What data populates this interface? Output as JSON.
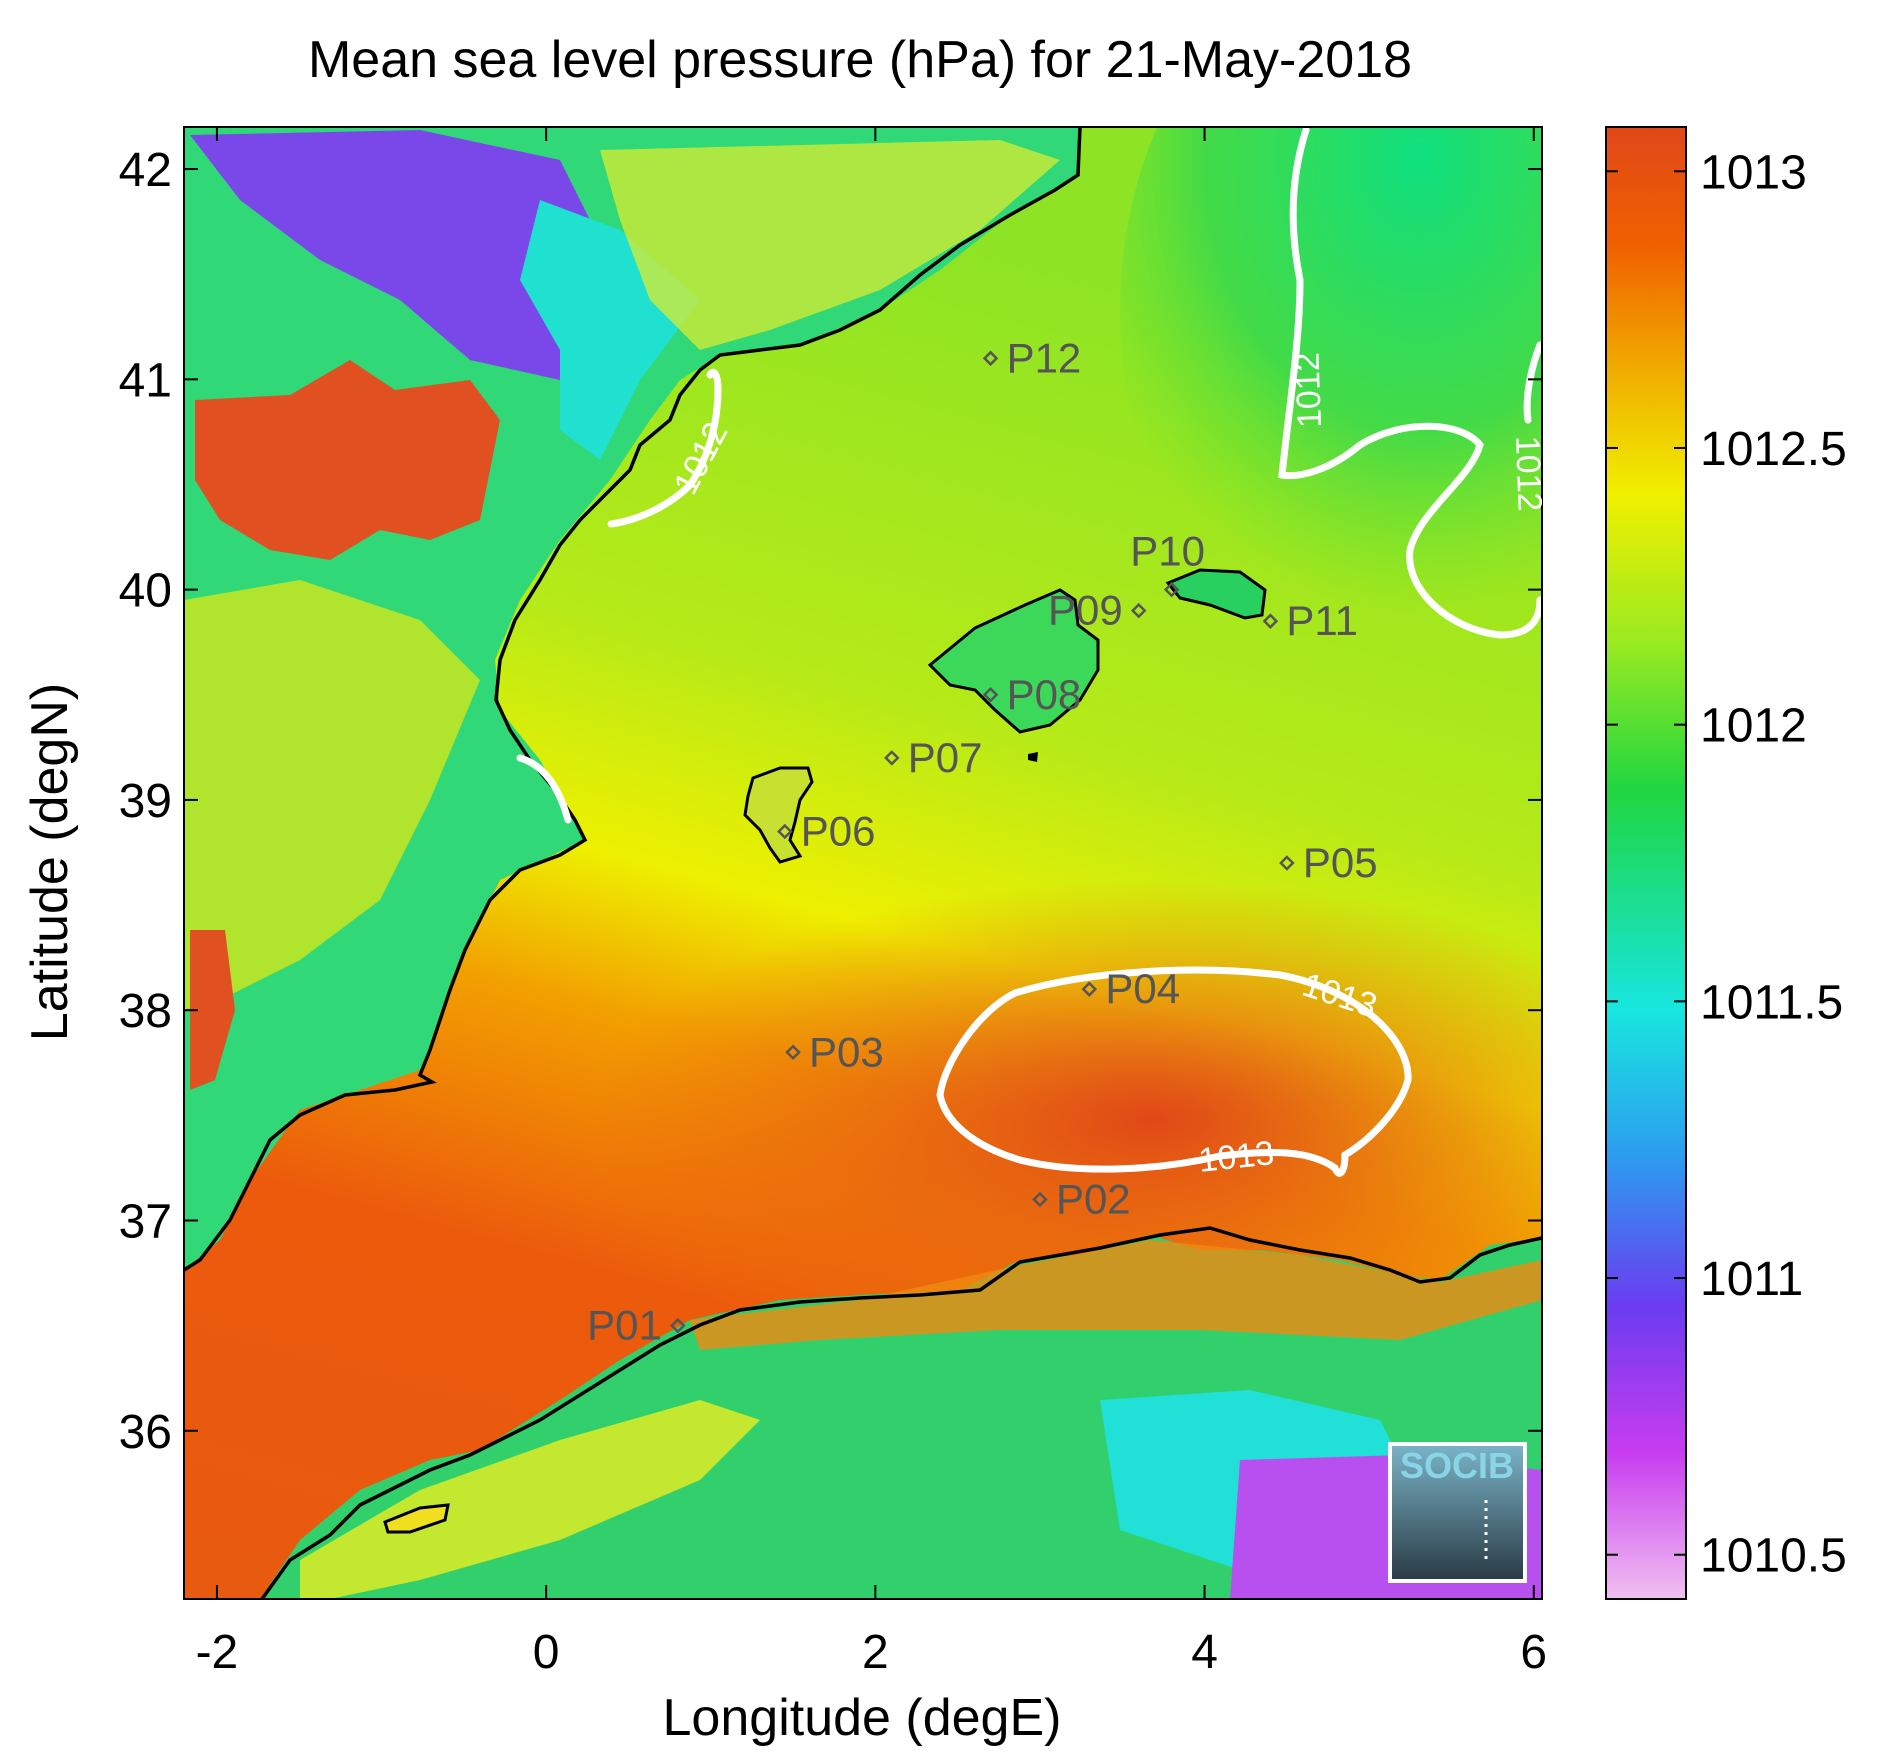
{
  "title": "Mean sea level pressure (hPa) for 21-May-2018",
  "xlabel": "Longitude (degE)",
  "ylabel": "Latitude (degN)",
  "colorbar": {
    "ticks": [
      "1010.5",
      "1011",
      "1011.5",
      "1012",
      "1012.5",
      "1013"
    ],
    "tick_values": [
      1010.5,
      1011,
      1011.5,
      1012,
      1012.5,
      1013
    ],
    "range": [
      1010.42,
      1013.08
    ],
    "colormap": [
      "#f0c0f0",
      "#c83cf0",
      "#6a3cf0",
      "#2c9cf0",
      "#18e6e0",
      "#20d640",
      "#9aea20",
      "#f0f000",
      "#f0b000",
      "#f06000",
      "#e04818"
    ]
  },
  "chart_data": {
    "type": "heatmap",
    "x_range": [
      -2.2,
      6.05
    ],
    "y_range": [
      35.2,
      42.2
    ],
    "xticks": [
      "-2",
      "0",
      "2",
      "4",
      "6"
    ],
    "xtick_values": [
      -2,
      0,
      2,
      4,
      6
    ],
    "yticks": [
      "36",
      "37",
      "38",
      "39",
      "40",
      "41",
      "42"
    ],
    "ytick_values": [
      36,
      37,
      38,
      39,
      40,
      41,
      42
    ],
    "contour_labels": [
      {
        "text": "1012",
        "lon": 1.0,
        "lat": 40.6,
        "rotate": -62
      },
      {
        "text": "1012",
        "lon": 4.7,
        "lat": 40.95,
        "rotate": -92
      },
      {
        "text": "1012",
        "lon": 5.9,
        "lat": 40.55,
        "rotate": 88
      },
      {
        "text": "1013",
        "lon": 4.8,
        "lat": 38.02,
        "rotate": 18
      },
      {
        "text": "1013",
        "lon": 4.2,
        "lat": 37.25,
        "rotate": -6
      }
    ],
    "points": [
      {
        "name": "P01",
        "lon": 0.8,
        "lat": 36.5,
        "label_side": "left"
      },
      {
        "name": "P02",
        "lon": 3.0,
        "lat": 37.1,
        "label_side": "right"
      },
      {
        "name": "P03",
        "lon": 1.5,
        "lat": 37.8,
        "label_side": "right"
      },
      {
        "name": "P04",
        "lon": 3.3,
        "lat": 38.1,
        "label_side": "right"
      },
      {
        "name": "P05",
        "lon": 4.5,
        "lat": 38.7,
        "label_side": "right"
      },
      {
        "name": "P06",
        "lon": 1.45,
        "lat": 38.85,
        "label_side": "right"
      },
      {
        "name": "P07",
        "lon": 2.1,
        "lat": 39.2,
        "label_side": "right"
      },
      {
        "name": "P08",
        "lon": 2.7,
        "lat": 39.5,
        "label_side": "right"
      },
      {
        "name": "P09",
        "lon": 3.6,
        "lat": 39.9,
        "label_side": "left"
      },
      {
        "name": "P10",
        "lon": 3.8,
        "lat": 40.0,
        "label_side": "above"
      },
      {
        "name": "P11",
        "lon": 4.4,
        "lat": 39.85,
        "label_side": "right"
      },
      {
        "name": "P12",
        "lon": 2.7,
        "lat": 41.1,
        "label_side": "right"
      }
    ]
  },
  "logo": {
    "text": "SOCIB"
  }
}
